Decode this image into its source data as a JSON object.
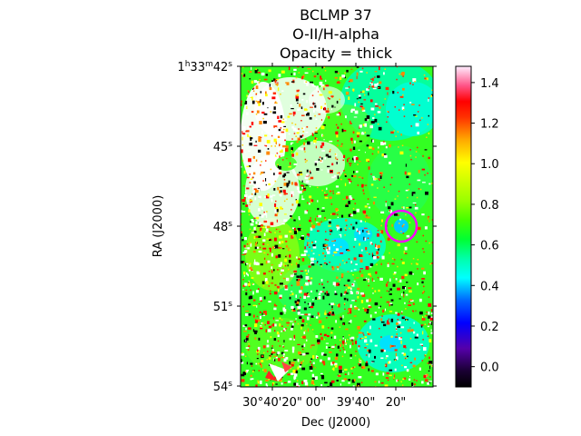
{
  "chart_data": {
    "type": "heatmap",
    "title_lines": [
      "BCLMP 37",
      "O-II/H-alpha",
      "Opacity = thick"
    ],
    "xlabel": "Dec (J2000)",
    "ylabel": "RA (J2000)",
    "x_ticks": [
      "30°40'20\"",
      "00\"",
      "39'40\"",
      "20\""
    ],
    "y_ticks": [
      {
        "base": "1",
        "h": "h",
        "m_val": "33",
        "m": "m",
        "s_val": "42",
        "s": "s"
      },
      {
        "base": "45",
        "s": "s"
      },
      {
        "base": "48",
        "s": "s"
      },
      {
        "base": "51",
        "s": "s"
      },
      {
        "base": "54",
        "s": "s"
      }
    ],
    "colorbar": {
      "colormap": "gist_ncar-like (black-purple-blue-cyan-green-yellow-orange-red-pink-white)",
      "ticks": [
        "0.0",
        "0.2",
        "0.4",
        "0.6",
        "0.8",
        "1.0",
        "1.2",
        "1.4"
      ],
      "tick_values": [
        0.0,
        0.2,
        0.4,
        0.6,
        0.8,
        1.0,
        1.2,
        1.4
      ],
      "range": [
        -0.1,
        1.48
      ]
    },
    "marker": {
      "shape": "circle",
      "color": "#ff00ff",
      "description": "aperture near 20\" Dec, ~48s RA"
    }
  }
}
